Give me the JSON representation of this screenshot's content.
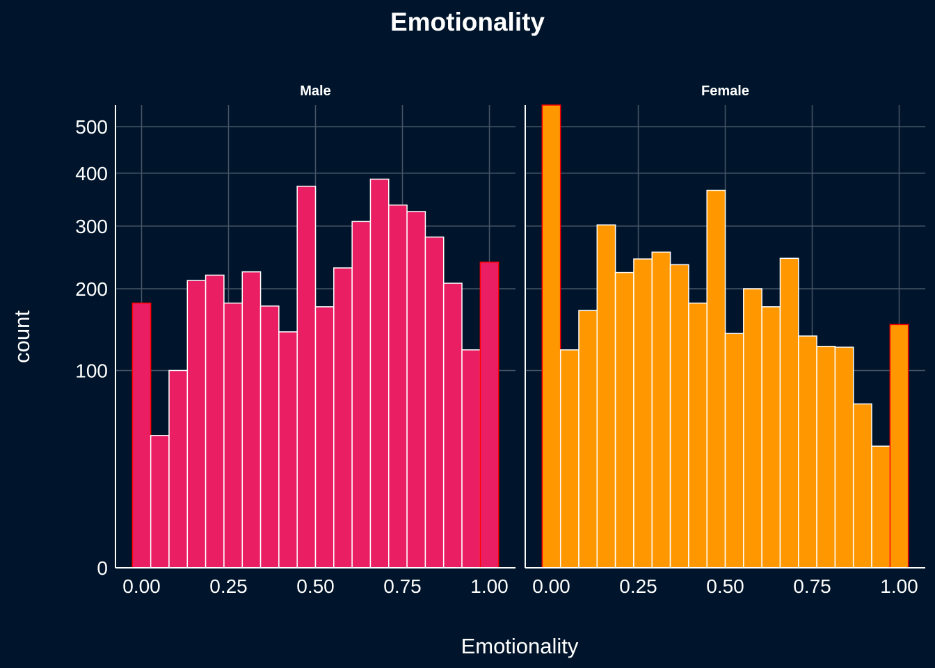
{
  "chart_data": {
    "type": "bar",
    "title": "Emotionality",
    "xlabel": "Emotionality",
    "ylabel": "count",
    "y_scale": "sqrt",
    "ylim": [
      0,
      550
    ],
    "xlim": [
      -0.075,
      1.075
    ],
    "yticks": [
      0,
      100,
      200,
      300,
      400,
      500
    ],
    "ytick_labels": [
      "0",
      "100",
      "200",
      "300",
      "400",
      "500"
    ],
    "xticks": [
      0,
      0.25,
      0.5,
      0.75,
      1.0
    ],
    "xtick_labels": [
      "0.00",
      "0.25",
      "0.50",
      "0.75",
      "1.00"
    ],
    "grid": true,
    "bin_width": 0.0526,
    "bin_centers": [
      0.0,
      0.0526,
      0.1053,
      0.1579,
      0.2105,
      0.2632,
      0.3158,
      0.3684,
      0.4211,
      0.4737,
      0.5263,
      0.5789,
      0.6316,
      0.6842,
      0.7368,
      0.7895,
      0.8421,
      0.8947,
      0.9474,
      1.0
    ],
    "panels": [
      {
        "name": "Male",
        "fill": "#e91e63",
        "edge_bins_outline": "#ff0000",
        "values": [
          180,
          45,
          100,
          212,
          220,
          180,
          225,
          176,
          143,
          374,
          175,
          231,
          308,
          388,
          338,
          326,
          281,
          208,
          122,
          240
        ]
      },
      {
        "name": "Female",
        "fill": "#ff9800",
        "edge_bins_outline": "#ff0000",
        "values": [
          550,
          122,
          170,
          302,
          224,
          245,
          256,
          236,
          180,
          366,
          141,
          200,
          175,
          246,
          138,
          126,
          125,
          69,
          38,
          152
        ]
      }
    ],
    "colors": {
      "background": "#00152b",
      "grid": "#465466",
      "text": "#ffffff",
      "bar_border": "#ffffff"
    }
  }
}
